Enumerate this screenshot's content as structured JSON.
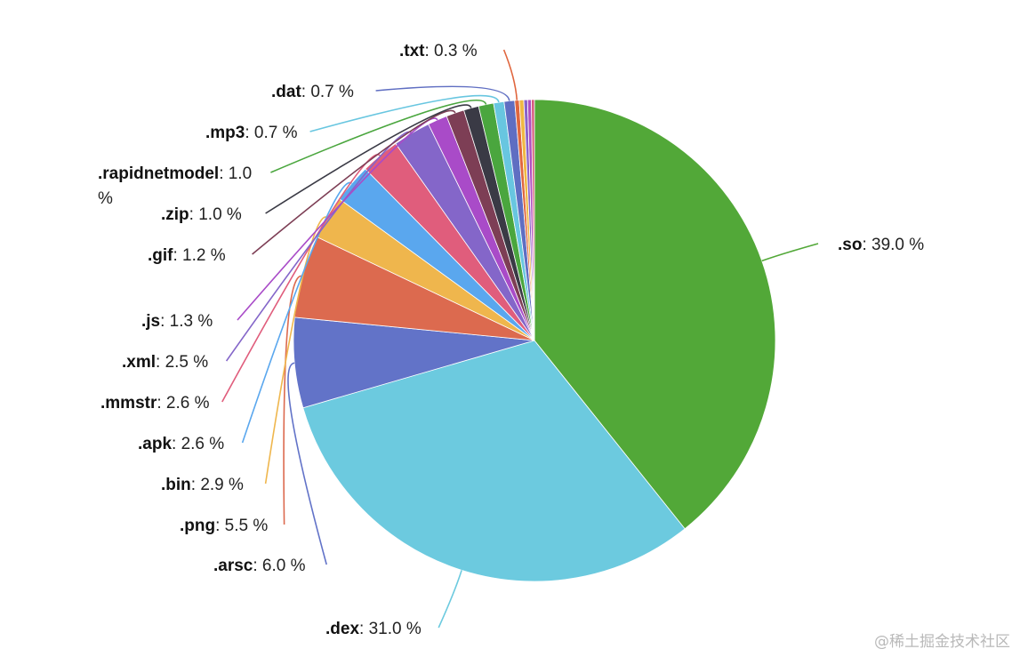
{
  "chart_data": {
    "type": "pie",
    "slices": [
      {
        "label": ".so",
        "value": 39.0,
        "display": "39.0 %",
        "color": "#52a838"
      },
      {
        "label": ".dex",
        "value": 31.0,
        "display": "31.0 %",
        "color": "#6ccadf"
      },
      {
        "label": ".arsc",
        "value": 6.0,
        "display": "6.0 %",
        "color": "#6273c8"
      },
      {
        "label": ".png",
        "value": 5.5,
        "display": "5.5 %",
        "color": "#dc6a4f"
      },
      {
        "label": ".bin",
        "value": 2.9,
        "display": "2.9 %",
        "color": "#efb64d"
      },
      {
        "label": ".apk",
        "value": 2.6,
        "display": "2.6 %",
        "color": "#5aa7ee"
      },
      {
        "label": ".mmstr",
        "value": 2.6,
        "display": "2.6 %",
        "color": "#e05d7c"
      },
      {
        "label": ".xml",
        "value": 2.5,
        "display": "2.5 %",
        "color": "#8466c9"
      },
      {
        "label": ".js",
        "value": 1.3,
        "display": "1.3 %",
        "color": "#a94bc8"
      },
      {
        "label": ".gif",
        "value": 1.2,
        "display": "1.2 %",
        "color": "#7d3e55"
      },
      {
        "label": ".zip",
        "value": 1.0,
        "display": "1.0 %",
        "color": "#3a3a45"
      },
      {
        "label": ".rapidnetmodel",
        "value": 1.0,
        "display": "1.0 %",
        "color": "#4aa63e"
      },
      {
        "label": ".mp3",
        "value": 0.7,
        "display": "0.7 %",
        "color": "#68c6e0"
      },
      {
        "label": ".dat",
        "value": 0.7,
        "display": "0.7 %",
        "color": "#5f6ec2"
      },
      {
        "label": ".txt",
        "value": 0.3,
        "display": "0.3 %",
        "color": "#e0663e"
      },
      {
        "label": "",
        "value": 0.3,
        "display": "",
        "color": "#f0b843"
      },
      {
        "label": "",
        "value": 0.25,
        "display": "",
        "color": "#8a63c8"
      },
      {
        "label": "",
        "value": 0.25,
        "display": "",
        "color": "#b04ec0"
      },
      {
        "label": "",
        "value": 0.2,
        "display": "",
        "color": "#d45a7a"
      }
    ],
    "title": ""
  },
  "watermark": "@稀土掘金技术社区"
}
